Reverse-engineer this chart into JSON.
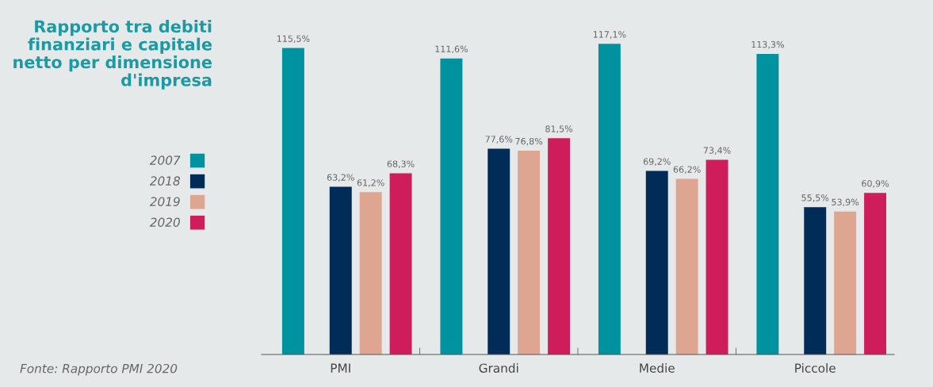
{
  "chart_data": {
    "type": "bar",
    "title": "Rapporto tra debiti\nfinanziari e capitale\nnetto per dimensione\nd'impresa",
    "categories": [
      "PMI",
      "Grandi",
      "Medie",
      "Piccole"
    ],
    "series": [
      {
        "name": "2007",
        "color": "#00929f",
        "values": [
          115.5,
          111.6,
          117.1,
          113.3
        ],
        "value_labels": [
          "115,5%",
          "111,6%",
          "117,1%",
          "113,3%"
        ]
      },
      {
        "name": "2018",
        "color": "#002c57",
        "values": [
          63.2,
          77.6,
          69.2,
          55.5
        ],
        "value_labels": [
          "63,2%",
          "77,6%",
          "69,2%",
          "55,5%"
        ]
      },
      {
        "name": "2019",
        "color": "#dea590",
        "values": [
          61.2,
          76.8,
          66.2,
          53.9
        ],
        "value_labels": [
          "61,2%",
          "76,8%",
          "66,2%",
          "53,9%"
        ]
      },
      {
        "name": "2020",
        "color": "#cf1d5b",
        "values": [
          68.3,
          81.5,
          73.4,
          60.9
        ],
        "value_labels": [
          "68,3%",
          "81,5%",
          "73,4%",
          "60,9%"
        ]
      }
    ],
    "annotations": [
      "Fonte: Rapporto PMI 2020"
    ],
    "legend": "left",
    "grid": false,
    "tick_labels": "x"
  }
}
